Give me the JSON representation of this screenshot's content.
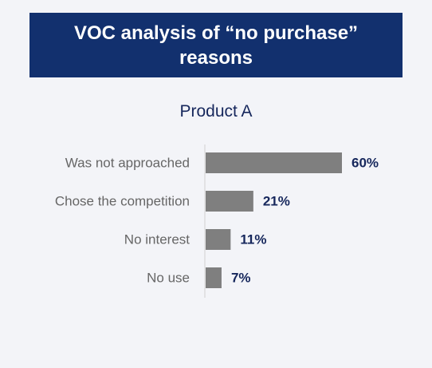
{
  "header": {
    "title": "VOC analysis of “no purchase” reasons"
  },
  "colors": {
    "banner": "#12306e",
    "bar": "#7f7f7f",
    "axis": "#d0d0d0",
    "value_text": "#16275c",
    "category_text": "#666666"
  },
  "chart_data": {
    "type": "bar",
    "orientation": "horizontal",
    "title": "Product A",
    "categories": [
      "Was not approached",
      "Chose the competition",
      "No interest",
      "No use"
    ],
    "values": [
      60,
      21,
      11,
      7
    ],
    "value_labels": [
      "60%",
      "21%",
      "11%",
      "7%"
    ],
    "unit": "%",
    "xlim": [
      0,
      60
    ],
    "grid": false,
    "legend": "none"
  }
}
